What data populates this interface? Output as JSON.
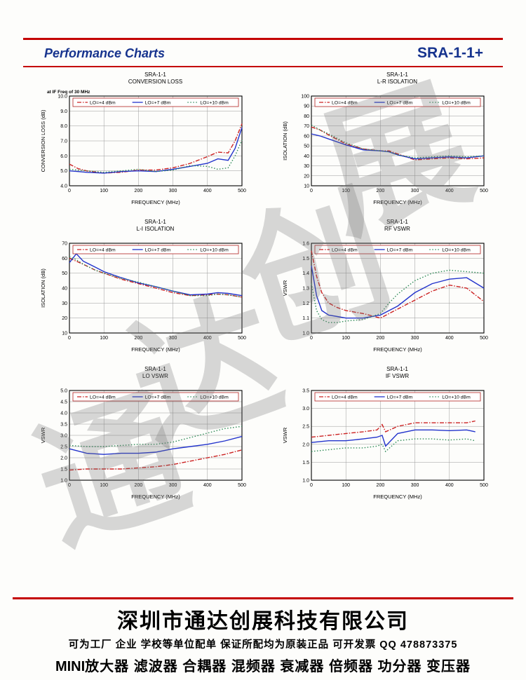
{
  "header": {
    "title": "Performance Charts",
    "model": "SRA-1-1+",
    "accent_color": "#16338e",
    "rule_color": "#c40000"
  },
  "watermark": {
    "chars": [
      "展",
      "创",
      "达",
      "通"
    ]
  },
  "footer": {
    "company": "深圳市通达创展科技有限公司",
    "line2": "可为工厂 企业 学校等单位配单 保证所配均为原装正品 可开发票 QQ 478873375",
    "line3_prefix": "MINI",
    "line3_rest": "放大器 滤波器 合耦器 混频器 衰减器 倍频器 功分器 变压器"
  },
  "legend": {
    "entries": [
      {
        "label": "LO=+4 dBm",
        "color": "#cc2222",
        "dash": "6 2 1.5 2"
      },
      {
        "label": "LO=+7 dBm",
        "color": "#2233cc",
        "dash": ""
      },
      {
        "label": "LO=+10 dBm",
        "color": "#2e8b57",
        "dash": "1.5 2.5"
      }
    ]
  },
  "chart_data": [
    {
      "type": "line",
      "title1": "SRA-1-1",
      "title2": "CONVERSION LOSS",
      "note": "at IF Freq of 30 MHz",
      "xlabel": "FREQUENCY (MHz)",
      "ylabel": "CONVERSION LOSS (dB)",
      "xlim": [
        0,
        500
      ],
      "ylim": [
        4.0,
        10.0
      ],
      "xticks": [
        0,
        100,
        200,
        300,
        400,
        500
      ],
      "yticks": [
        "4.0",
        "5.0",
        "6.0",
        "7.0",
        "8.0",
        "9.0",
        "10.0"
      ],
      "x": [
        0,
        25,
        50,
        100,
        150,
        200,
        250,
        300,
        350,
        400,
        430,
        460,
        480,
        500
      ],
      "series": [
        {
          "name": "LO=+4 dBm",
          "values": [
            5.45,
            5.15,
            5.0,
            4.85,
            4.9,
            5.05,
            5.05,
            5.2,
            5.5,
            5.95,
            6.25,
            6.2,
            7.0,
            8.15
          ]
        },
        {
          "name": "LO=+7 dBm",
          "values": [
            5.0,
            4.95,
            4.9,
            4.85,
            4.95,
            5.0,
            4.95,
            5.1,
            5.3,
            5.5,
            5.8,
            5.7,
            6.5,
            7.9
          ]
        },
        {
          "name": "LO=+10 dBm",
          "values": [
            5.1,
            5.05,
            5.0,
            4.9,
            5.0,
            5.1,
            4.95,
            5.05,
            5.35,
            5.3,
            5.1,
            5.2,
            6.0,
            7.05
          ]
        }
      ]
    },
    {
      "type": "line",
      "title1": "SRA-1-1",
      "title2": "L-R ISOLATION",
      "note": "",
      "xlabel": "FREQUENCY (MHz)",
      "ylabel": "ISOLATION (dB)",
      "xlim": [
        0,
        500
      ],
      "ylim": [
        10,
        100
      ],
      "xticks": [
        0,
        100,
        200,
        300,
        400,
        500
      ],
      "yticks": [
        "10",
        "20",
        "30",
        "40",
        "50",
        "60",
        "70",
        "80",
        "90",
        "100"
      ],
      "x": [
        0,
        25,
        50,
        100,
        150,
        200,
        225,
        250,
        300,
        350,
        400,
        450,
        500
      ],
      "series": [
        {
          "name": "LO=+4 dBm",
          "values": [
            69,
            66,
            61,
            52,
            47,
            45,
            45,
            42,
            36,
            37,
            38,
            37,
            38
          ]
        },
        {
          "name": "LO=+7 dBm",
          "values": [
            62,
            60,
            57,
            51,
            46,
            45,
            44,
            41,
            37,
            38,
            39,
            38,
            40
          ]
        },
        {
          "name": "LO=+10 dBm",
          "values": [
            71,
            66,
            62,
            53,
            47,
            45,
            44,
            41,
            38,
            39,
            40,
            39,
            40
          ]
        }
      ]
    },
    {
      "type": "line",
      "title1": "SRA-1-1",
      "title2": "L-I ISOLATION",
      "note": "",
      "xlabel": "FREQUENCY (MHz)",
      "ylabel": "ISOLATION (dB)",
      "xlim": [
        0,
        500
      ],
      "ylim": [
        10,
        70
      ],
      "xticks": [
        0,
        100,
        200,
        300,
        400,
        500
      ],
      "yticks": [
        "10",
        "20",
        "30",
        "40",
        "50",
        "60",
        "70"
      ],
      "x": [
        0,
        20,
        40,
        75,
        100,
        150,
        200,
        250,
        300,
        350,
        400,
        430,
        460,
        500
      ],
      "series": [
        {
          "name": "LO=+4 dBm",
          "values": [
            60,
            58,
            56,
            52,
            50,
            46,
            43,
            40,
            37,
            35,
            35.5,
            36,
            35.5,
            34
          ]
        },
        {
          "name": "LO=+7 dBm",
          "values": [
            57,
            63,
            58,
            54,
            51,
            47,
            43.5,
            41,
            38,
            35.5,
            36,
            37,
            36.5,
            35
          ]
        },
        {
          "name": "LO=+10 dBm",
          "values": [
            61,
            59,
            56,
            52,
            50,
            46.5,
            44,
            41,
            38,
            35,
            35,
            36,
            35.5,
            34
          ]
        }
      ]
    },
    {
      "type": "line",
      "title1": "SRA-1-1",
      "title2": "RF VSWR",
      "note": "",
      "xlabel": "FREQUENCY (MHz)",
      "ylabel": "VSWR",
      "xlim": [
        0,
        500
      ],
      "ylim": [
        1.0,
        1.6
      ],
      "xticks": [
        0,
        100,
        200,
        300,
        400,
        500
      ],
      "yticks": [
        "1.0",
        "1.1",
        "1.2",
        "1.3",
        "1.4",
        "1.5",
        "1.6"
      ],
      "x": [
        0,
        15,
        30,
        50,
        75,
        100,
        150,
        200,
        225,
        250,
        300,
        350,
        400,
        450,
        500
      ],
      "series": [
        {
          "name": "LO=+4 dBm",
          "values": [
            1.55,
            1.38,
            1.27,
            1.2,
            1.17,
            1.15,
            1.13,
            1.1,
            1.13,
            1.16,
            1.22,
            1.28,
            1.32,
            1.3,
            1.21
          ]
        },
        {
          "name": "LO=+7 dBm",
          "values": [
            1.45,
            1.25,
            1.15,
            1.12,
            1.11,
            1.1,
            1.1,
            1.12,
            1.15,
            1.18,
            1.27,
            1.33,
            1.36,
            1.37,
            1.3
          ]
        },
        {
          "name": "LO=+10 dBm",
          "values": [
            1.33,
            1.15,
            1.09,
            1.07,
            1.07,
            1.08,
            1.09,
            1.13,
            1.2,
            1.26,
            1.35,
            1.4,
            1.42,
            1.41,
            1.4
          ]
        }
      ]
    },
    {
      "type": "line",
      "title1": "SRA-1-1",
      "title2": "LO VSWR",
      "note": "",
      "xlabel": "FREQUENCY (MHz)",
      "ylabel": "VSWR",
      "xlim": [
        0,
        500
      ],
      "ylim": [
        1.0,
        5.0
      ],
      "xticks": [
        0,
        100,
        200,
        300,
        400,
        500
      ],
      "yticks": [
        "1.0",
        "1.5",
        "2.0",
        "2.5",
        "3.0",
        "3.5",
        "4.0",
        "4.5",
        "5.0"
      ],
      "x": [
        0,
        50,
        100,
        150,
        200,
        250,
        300,
        350,
        400,
        450,
        500
      ],
      "series": [
        {
          "name": "LO=+4 dBm",
          "values": [
            1.45,
            1.5,
            1.5,
            1.5,
            1.55,
            1.6,
            1.7,
            1.85,
            2.0,
            2.15,
            2.35
          ]
        },
        {
          "name": "LO=+7 dBm",
          "values": [
            2.4,
            2.2,
            2.15,
            2.2,
            2.2,
            2.25,
            2.4,
            2.5,
            2.6,
            2.75,
            2.95
          ]
        },
        {
          "name": "LO=+10 dBm",
          "values": [
            2.55,
            2.5,
            2.5,
            2.55,
            2.6,
            2.6,
            2.7,
            2.9,
            3.1,
            3.3,
            3.4
          ]
        }
      ]
    },
    {
      "type": "line",
      "title1": "SRA-1-1",
      "title2": "IF VSWR",
      "note": "",
      "xlabel": "FREQUENCY (MHz)",
      "ylabel": "VSWR",
      "xlim": [
        0,
        500
      ],
      "ylim": [
        1.0,
        3.5
      ],
      "xticks": [
        0,
        100,
        200,
        300,
        400,
        500
      ],
      "yticks": [
        "1.0",
        "1.5",
        "2.0",
        "2.5",
        "3.0",
        "3.5"
      ],
      "x": [
        0,
        50,
        100,
        150,
        190,
        205,
        215,
        250,
        300,
        350,
        400,
        450,
        475
      ],
      "series": [
        {
          "name": "LO=+4 dBm",
          "values": [
            2.2,
            2.25,
            2.3,
            2.35,
            2.4,
            2.55,
            2.35,
            2.5,
            2.6,
            2.6,
            2.6,
            2.6,
            2.65
          ]
        },
        {
          "name": "LO=+7 dBm",
          "values": [
            2.05,
            2.1,
            2.1,
            2.15,
            2.2,
            2.25,
            1.95,
            2.3,
            2.4,
            2.4,
            2.38,
            2.4,
            2.35
          ]
        },
        {
          "name": "LO=+10 dBm",
          "values": [
            1.8,
            1.85,
            1.9,
            1.9,
            1.95,
            2.0,
            1.8,
            2.1,
            2.15,
            2.15,
            2.12,
            2.15,
            2.1
          ]
        }
      ]
    }
  ]
}
